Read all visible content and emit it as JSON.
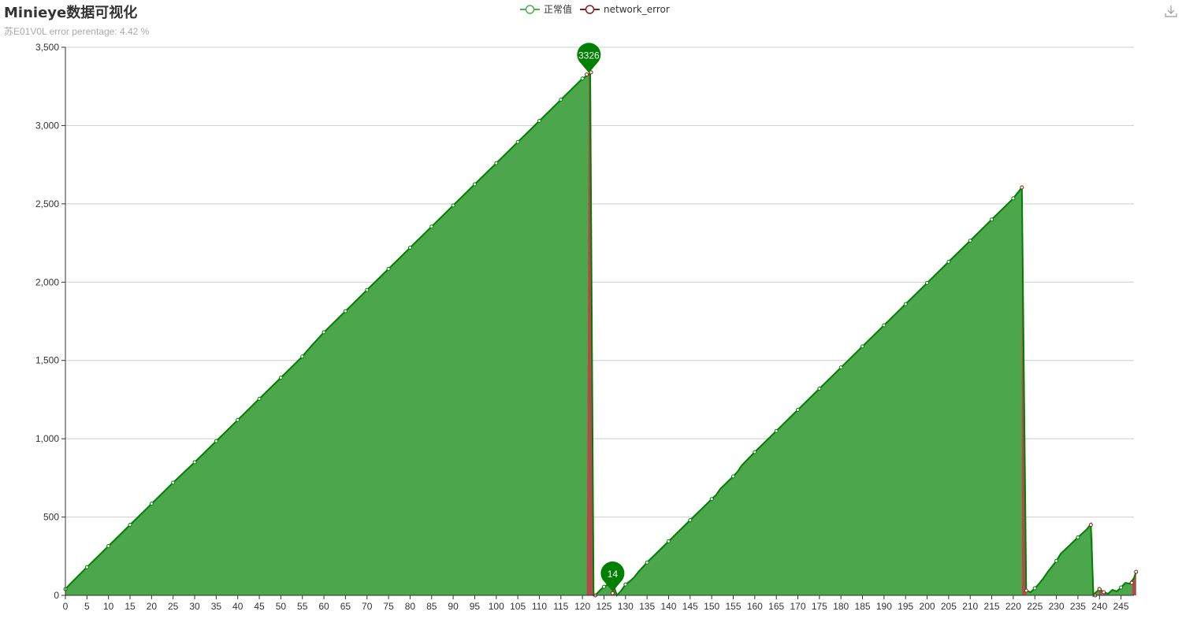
{
  "title": "Minieye数据可视化",
  "subtitle": "苏E01V0L error perentage: 4.42 %",
  "toolbox": {
    "download_icon": "download-icon"
  },
  "colors": {
    "normal": "#008000",
    "normal_area": "#4ca64c",
    "error": "#8b1c1c",
    "error_area": "#b44b4b",
    "axis": "#333333",
    "grid": "#cccccc"
  },
  "chart_data": {
    "type": "area",
    "title": "Minieye数据可视化",
    "subtitle": "苏E01V0L error perentage: 4.42 %",
    "legend": {
      "position": "top-center",
      "entries": [
        "正常值",
        "network_error"
      ]
    },
    "grid": true,
    "x": {
      "min": 0,
      "max": 248,
      "tick_step": 5
    },
    "y": {
      "min": 0,
      "max": 3500,
      "ticks": [
        "0",
        "500",
        "1,000",
        "1,500",
        "2,000",
        "2,500",
        "3,000",
        "3,500"
      ]
    },
    "series": [
      {
        "name": "正常值",
        "color": "#008000",
        "points": [
          [
            0,
            40
          ],
          [
            1,
            70
          ],
          [
            5,
            180
          ],
          [
            10,
            315
          ],
          [
            15,
            450
          ],
          [
            20,
            585
          ],
          [
            25,
            720
          ],
          [
            30,
            850
          ],
          [
            35,
            985
          ],
          [
            40,
            1120
          ],
          [
            45,
            1255
          ],
          [
            50,
            1390
          ],
          [
            55,
            1525
          ],
          [
            57,
            1590
          ],
          [
            59,
            1650
          ],
          [
            60,
            1680
          ],
          [
            65,
            1815
          ],
          [
            70,
            1950
          ],
          [
            75,
            2085
          ],
          [
            80,
            2220
          ],
          [
            85,
            2355
          ],
          [
            90,
            2490
          ],
          [
            95,
            2625
          ],
          [
            100,
            2760
          ],
          [
            105,
            2895
          ],
          [
            110,
            3030
          ],
          [
            115,
            3165
          ],
          [
            120,
            3300
          ],
          [
            121.5,
            3326
          ],
          [
            121.8,
            3340
          ],
          [
            122.6,
            0
          ],
          [
            123,
            0
          ],
          [
            124,
            30
          ],
          [
            125,
            55
          ],
          [
            126,
            70
          ],
          [
            127,
            80
          ],
          [
            128,
            0
          ],
          [
            129,
            30
          ],
          [
            130,
            70
          ],
          [
            131,
            90
          ],
          [
            132,
            115
          ],
          [
            133,
            150
          ],
          [
            135,
            210
          ],
          [
            140,
            345
          ],
          [
            145,
            480
          ],
          [
            150,
            615
          ],
          [
            151,
            640
          ],
          [
            152,
            680
          ],
          [
            155,
            760
          ],
          [
            156,
            790
          ],
          [
            157,
            830
          ],
          [
            160,
            915
          ],
          [
            165,
            1050
          ],
          [
            170,
            1185
          ],
          [
            175,
            1320
          ],
          [
            180,
            1455
          ],
          [
            185,
            1590
          ],
          [
            190,
            1725
          ],
          [
            195,
            1860
          ],
          [
            200,
            1995
          ],
          [
            205,
            2130
          ],
          [
            210,
            2265
          ],
          [
            215,
            2400
          ],
          [
            220,
            2535
          ],
          [
            222,
            2605
          ],
          [
            223,
            30
          ],
          [
            224,
            20
          ],
          [
            225,
            45
          ],
          [
            226,
            75
          ],
          [
            227,
            110
          ],
          [
            228,
            150
          ],
          [
            230,
            220
          ],
          [
            231,
            265
          ],
          [
            235,
            370
          ],
          [
            237,
            420
          ],
          [
            238,
            455
          ],
          [
            238.6,
            0
          ],
          [
            239,
            15
          ],
          [
            240,
            40
          ],
          [
            241,
            20
          ],
          [
            242,
            10
          ],
          [
            243,
            35
          ],
          [
            244,
            25
          ],
          [
            245,
            50
          ],
          [
            246,
            80
          ],
          [
            247,
            75
          ],
          [
            248,
            110
          ],
          [
            248.5,
            150
          ]
        ]
      },
      {
        "name": "network_error",
        "color": "#8b1c1c",
        "points": [
          [
            121,
            3326
          ],
          [
            122,
            3340
          ],
          [
            123,
            0
          ],
          [
            127,
            14
          ],
          [
            222,
            2605
          ],
          [
            223,
            30
          ],
          [
            238,
            450
          ],
          [
            239,
            0
          ],
          [
            240,
            40
          ],
          [
            241,
            20
          ],
          [
            247.5,
            80
          ],
          [
            248.5,
            150
          ]
        ]
      }
    ],
    "error_bands": [
      [
        121,
        122.6
      ],
      [
        127,
        127.6
      ],
      [
        222,
        223
      ],
      [
        238.3,
        238.8
      ],
      [
        239.8,
        240.5
      ],
      [
        240.8,
        241.5
      ],
      [
        247.6,
        248.5
      ]
    ],
    "markers": [
      {
        "label": "3326",
        "x": 121.5,
        "y": 3326
      },
      {
        "label": "14",
        "x": 127,
        "y": 14
      }
    ]
  }
}
